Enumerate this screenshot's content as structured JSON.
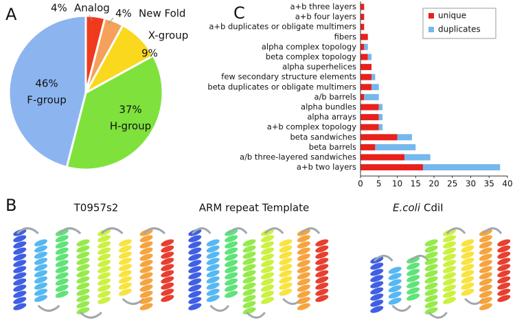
{
  "panel_labels": [
    "A",
    "B",
    "C"
  ],
  "chart_data": [
    {
      "type": "pie",
      "categories": [
        "Analog",
        "New Fold",
        "X-group",
        "H-group",
        "F-group"
      ],
      "values": [
        4,
        4,
        9,
        37,
        46
      ],
      "value_labels": [
        "4%",
        "4%",
        "9%",
        "37%",
        "46%"
      ],
      "colors": [
        "#f03a1e",
        "#f5a15c",
        "#f9d81e",
        "#7fe23c",
        "#8cb5f0"
      ]
    },
    {
      "type": "stacked-barh",
      "categories": [
        "a+b three layers",
        "a+b four layers",
        "a+b duplicates or obligate multimers",
        "fibers",
        "alpha complex topology",
        "beta complex topology",
        "alpha superhelices",
        "few secondary structure elements",
        "beta duplicates or obligate multimers",
        "a/b barrels",
        "alpha bundles",
        "alpha arrays",
        "a+b complex topology",
        "beta sandwiches",
        "beta barrels",
        "a/b three-layered sandwiches",
        "a+b two layers"
      ],
      "series": [
        {
          "name": "unique",
          "color": "#e8211c",
          "values": [
            1,
            1,
            1,
            2,
            1,
            2,
            3,
            3,
            3,
            1,
            5,
            5,
            5,
            10,
            4,
            12,
            17
          ]
        },
        {
          "name": "duplicates",
          "color": "#76b7ec",
          "values": [
            0,
            0,
            0,
            0,
            1,
            1,
            0,
            1,
            2,
            4,
            1,
            1,
            1,
            4,
            11,
            7,
            21
          ]
        }
      ],
      "xlim": [
        0,
        40
      ],
      "xticks": [
        0,
        5,
        10,
        15,
        20,
        25,
        30,
        35,
        40
      ],
      "legend": "upper right"
    }
  ],
  "structures": [
    {
      "title": "T0957s2"
    },
    {
      "title": "ARM repeat Template"
    },
    {
      "title_italic": "E.coli",
      "title": "CdiI"
    }
  ]
}
